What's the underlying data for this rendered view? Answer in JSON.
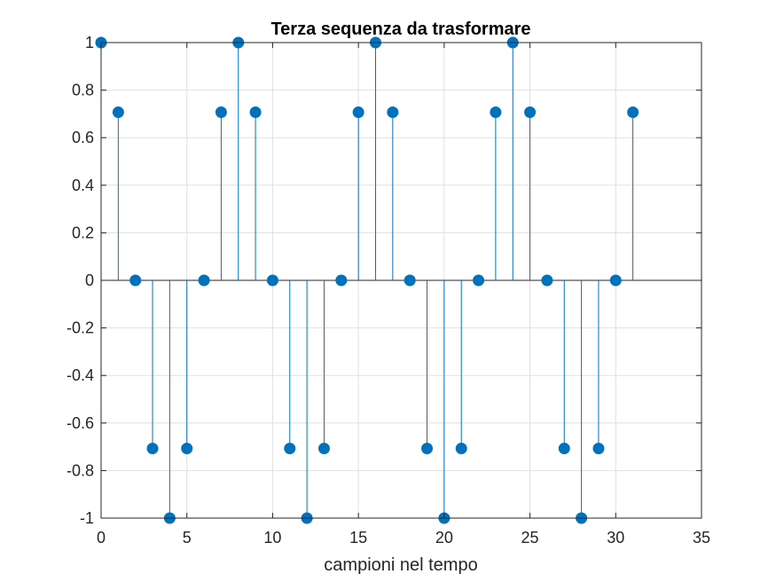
{
  "chart_data": {
    "type": "stem",
    "title": "Terza sequenza da trasformare",
    "xlabel": "campioni nel tempo",
    "ylabel": "",
    "xlim": [
      0,
      35
    ],
    "ylim": [
      -1,
      1
    ],
    "grid": true,
    "x_ticks": [
      0,
      5,
      10,
      15,
      20,
      25,
      30,
      35
    ],
    "y_ticks": [
      1,
      0.8,
      0.6,
      0.4,
      0.2,
      0,
      -0.2,
      -0.4,
      -0.6,
      -0.8,
      -1
    ],
    "x_tick_labels": [
      "0",
      "5",
      "10",
      "15",
      "20",
      "25",
      "30",
      "35"
    ],
    "y_tick_labels": [
      "1",
      "0.8",
      "0.6",
      "0.4",
      "0.2",
      "0",
      "-0.2",
      "-0.4",
      "-0.6",
      "-0.8",
      "-1"
    ],
    "color": "#0072BD",
    "series": [
      {
        "x": [
          0,
          1,
          2,
          3,
          4,
          5,
          6,
          7,
          8,
          9,
          10,
          11,
          12,
          13,
          14,
          15,
          16,
          17,
          18,
          19,
          20,
          21,
          22,
          23,
          24,
          25,
          26,
          27,
          28,
          29,
          30,
          31
        ],
        "values": [
          1,
          0.7071,
          0,
          -0.7071,
          -1,
          -0.7071,
          0,
          0.7071,
          1,
          0.7071,
          0,
          -0.7071,
          -1,
          -0.7071,
          0,
          0.7071,
          1,
          0.7071,
          0,
          -0.7071,
          -1,
          -0.7071,
          0,
          0.7071,
          1,
          0.7071,
          0,
          -0.7071,
          -1,
          -0.7071,
          0,
          0.7071
        ]
      }
    ]
  }
}
